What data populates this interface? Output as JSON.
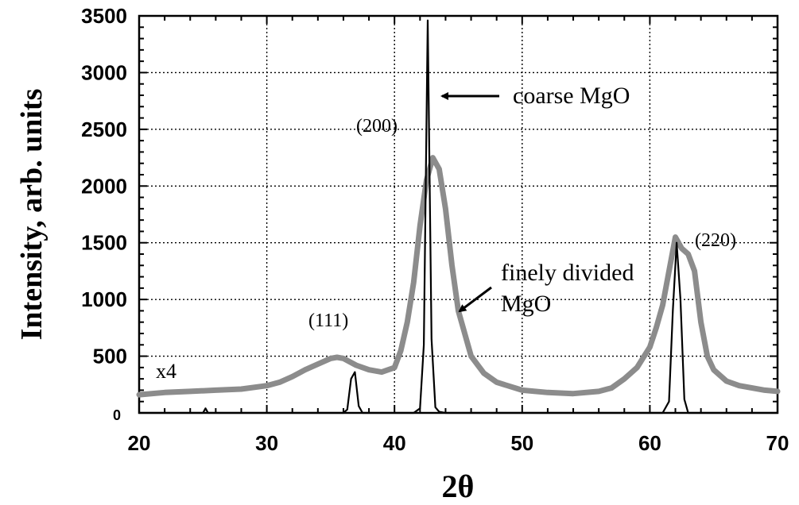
{
  "chart_data": {
    "type": "line",
    "title": "",
    "xlabel": "2θ",
    "ylabel": "Intensity, arb. units",
    "xlim": [
      20,
      70
    ],
    "ylim": [
      0,
      3500
    ],
    "x_ticks": [
      20,
      30,
      40,
      50,
      60,
      70
    ],
    "y_ticks": [
      0,
      500,
      1000,
      1500,
      2000,
      2500,
      3000,
      3500
    ],
    "grid": true,
    "series": [
      {
        "name": "finely divided MgO",
        "color": "#8c8c8c",
        "x": [
          20,
          22,
          24,
          26,
          28,
          30,
          31,
          32,
          33,
          34,
          35,
          35.5,
          36,
          37,
          38,
          39,
          40,
          40.5,
          41,
          41.5,
          42,
          42.5,
          43,
          43.5,
          44,
          44.5,
          45,
          46,
          47,
          48,
          50,
          52,
          54,
          56,
          57,
          58,
          59,
          60,
          60.5,
          61,
          61.5,
          62,
          62.5,
          63,
          63.5,
          64,
          64.5,
          65,
          66,
          67,
          68,
          69,
          70
        ],
        "y": [
          160,
          180,
          190,
          200,
          210,
          240,
          270,
          320,
          380,
          430,
          480,
          490,
          480,
          420,
          380,
          360,
          400,
          550,
          800,
          1150,
          1650,
          2050,
          2250,
          2150,
          1800,
          1300,
          900,
          500,
          350,
          270,
          200,
          180,
          170,
          190,
          220,
          300,
          400,
          580,
          750,
          950,
          1250,
          1550,
          1450,
          1400,
          1250,
          800,
          500,
          380,
          280,
          240,
          220,
          200,
          190
        ]
      },
      {
        "name": "coarse MgO",
        "color": "#000000",
        "x": [
          20,
          25,
          25.2,
          25.4,
          30,
          36,
          36.3,
          36.6,
          36.9,
          37.2,
          37.5,
          41.5,
          42,
          42.3,
          42.6,
          42.9,
          43.2,
          43.5,
          44,
          61,
          61.5,
          61.8,
          62.1,
          62.4,
          62.7,
          63,
          70
        ],
        "y": [
          0,
          0,
          40,
          0,
          0,
          0,
          30,
          300,
          360,
          60,
          0,
          0,
          40,
          600,
          3460,
          650,
          50,
          10,
          0,
          0,
          100,
          900,
          1500,
          1000,
          120,
          0,
          0
        ]
      }
    ],
    "annotations": {
      "peak_111": "(111)",
      "peak_200": "(200)",
      "peak_220": "(220)",
      "coarse_label": "coarse MgO",
      "fine_label_line1": "finely divided",
      "fine_label_line2": "MgO",
      "scale_note": "x4"
    }
  }
}
